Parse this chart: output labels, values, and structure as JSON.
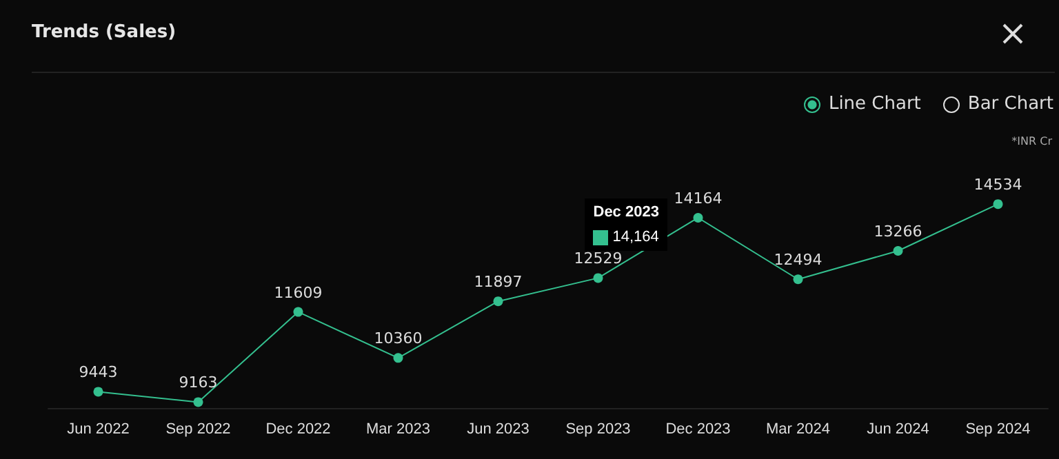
{
  "chart_data": {
    "type": "line",
    "title": "Trends (Sales)",
    "categories": [
      "Jun 2022",
      "Sep 2022",
      "Dec 2022",
      "Mar 2023",
      "Jun 2023",
      "Sep 2023",
      "Dec 2023",
      "Mar 2024",
      "Jun 2024",
      "Sep 2024"
    ],
    "series": [
      {
        "color": "#34c08f",
        "values": [
          9443,
          9163,
          11609,
          10360,
          11897,
          12529,
          14164,
          12494,
          13266,
          14534
        ]
      }
    ],
    "data_labels": true,
    "marker": "circle",
    "grid": false,
    "tick_labels": "x",
    "annotations": [
      "Line Chart",
      "Bar Chart",
      "*INR Cr",
      {
        "text": "Dec 2023",
        "x": "Dec 2023",
        "y": 14164
      },
      "14,164"
    ]
  }
}
